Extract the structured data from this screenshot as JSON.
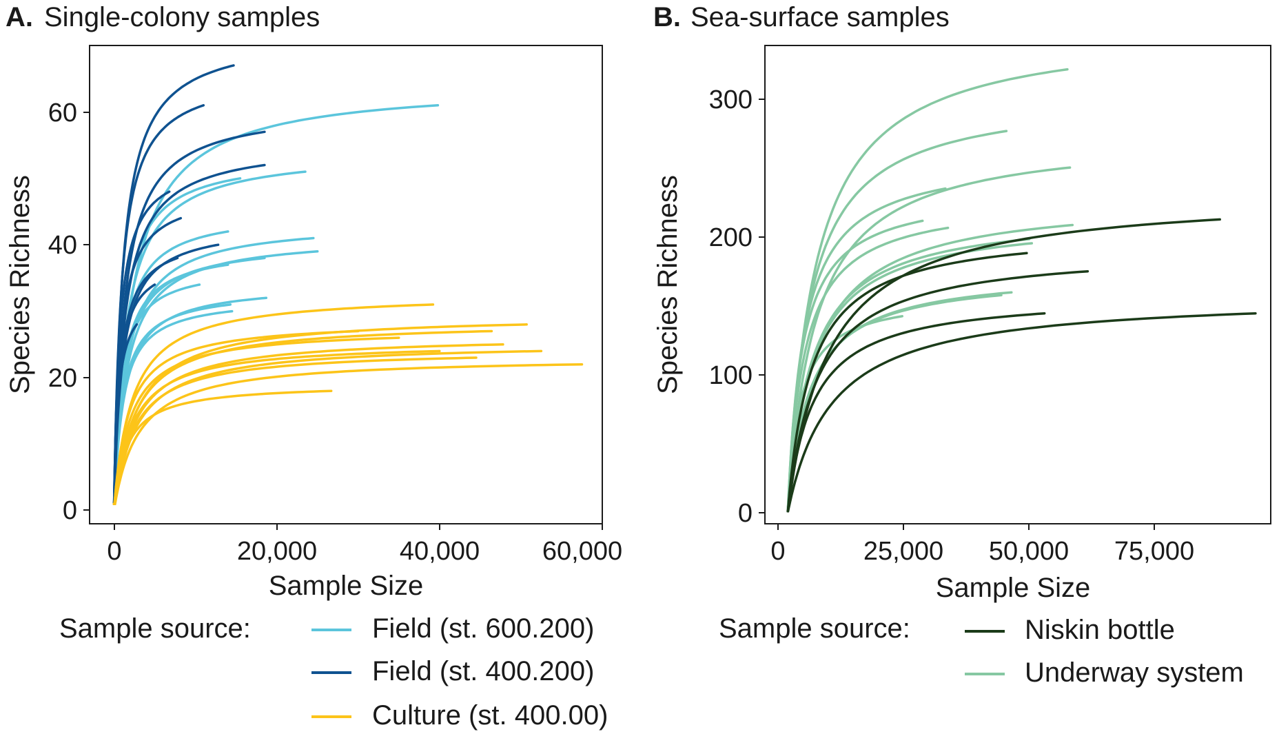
{
  "chart_data": [
    {
      "type": "line",
      "panel_letter": "A.",
      "title": "Single-colony samples",
      "xlabel": "Sample Size",
      "ylabel": "Species Richness",
      "xlim": [
        -3000,
        60000
      ],
      "ylim": [
        -2,
        70
      ],
      "xticks": [
        0,
        20000,
        40000,
        60000
      ],
      "xtick_labels": [
        "0",
        "20,000",
        "40,000",
        "60,000"
      ],
      "yticks": [
        0,
        20,
        40,
        60
      ],
      "ytick_labels": [
        "0",
        "20",
        "40",
        "60"
      ],
      "grid": false,
      "legend": {
        "position": "bottom",
        "title": "Sample source:",
        "entries": [
          {
            "label": "Field (st. 600.200)",
            "color": "#5bc5dc"
          },
          {
            "label": "Field (st. 400.200)",
            "color": "#0f5290"
          },
          {
            "label": "Culture (st. 400.00)",
            "color": "#fcc419"
          }
        ]
      },
      "series_groups": [
        {
          "name": "Field (st. 600.200)",
          "color": "#5bc5dc",
          "curves": [
            {
              "max_x": 39800,
              "max_y": 61
            },
            {
              "max_x": 23500,
              "max_y": 51
            },
            {
              "max_x": 15500,
              "max_y": 50
            },
            {
              "max_x": 24500,
              "max_y": 41
            },
            {
              "max_x": 25000,
              "max_y": 39
            },
            {
              "max_x": 14000,
              "max_y": 42
            },
            {
              "max_x": 18500,
              "max_y": 38
            },
            {
              "max_x": 14000,
              "max_y": 37
            },
            {
              "max_x": 10500,
              "max_y": 34
            },
            {
              "max_x": 18700,
              "max_y": 32
            },
            {
              "max_x": 14300,
              "max_y": 31
            },
            {
              "max_x": 14500,
              "max_y": 30
            }
          ]
        },
        {
          "name": "Field (st. 400.200)",
          "color": "#0f5290",
          "curves": [
            {
              "max_x": 14700,
              "max_y": 67
            },
            {
              "max_x": 11000,
              "max_y": 61
            },
            {
              "max_x": 18500,
              "max_y": 57
            },
            {
              "max_x": 18500,
              "max_y": 52
            },
            {
              "max_x": 6800,
              "max_y": 48
            },
            {
              "max_x": 8200,
              "max_y": 44
            },
            {
              "max_x": 12800,
              "max_y": 40
            },
            {
              "max_x": 7800,
              "max_y": 38
            },
            {
              "max_x": 5000,
              "max_y": 34
            },
            {
              "max_x": 2800,
              "max_y": 28
            }
          ]
        },
        {
          "name": "Culture (st. 400.00)",
          "color": "#fcc419",
          "curves": [
            {
              "max_x": 39200,
              "max_y": 31
            },
            {
              "max_x": 50700,
              "max_y": 28
            },
            {
              "max_x": 46400,
              "max_y": 27
            },
            {
              "max_x": 30000,
              "max_y": 27
            },
            {
              "max_x": 47800,
              "max_y": 25
            },
            {
              "max_x": 52500,
              "max_y": 24
            },
            {
              "max_x": 44500,
              "max_y": 23
            },
            {
              "max_x": 57500,
              "max_y": 22
            },
            {
              "max_x": 40000,
              "max_y": 24
            },
            {
              "max_x": 35000,
              "max_y": 26
            },
            {
              "max_x": 26700,
              "max_y": 18
            }
          ]
        }
      ]
    },
    {
      "type": "line",
      "panel_letter": "B.",
      "title": "Sea-surface samples",
      "xlabel": "Sample Size",
      "ylabel": "Species Richness",
      "xlim": [
        -4500,
        95000
      ],
      "ylim": [
        -8,
        333
      ],
      "xticks": [
        0,
        25000,
        50000,
        75000
      ],
      "xtick_labels": [
        "0",
        "25,000",
        "50,000",
        "75,000"
      ],
      "yticks": [
        0,
        100,
        200,
        300
      ],
      "ytick_labels": [
        "0",
        "100",
        "200",
        "300"
      ],
      "grid": false,
      "legend": {
        "position": "bottom",
        "title": "Sample source:",
        "entries": [
          {
            "label": "Niskin bottle",
            "color": "#1b3b19"
          },
          {
            "label": "Underway system",
            "color": "#86c8a2"
          }
        ]
      },
      "series_groups": [
        {
          "name": "Underway system",
          "color": "#86c8a2",
          "curves": [
            {
              "max_x": 55000,
              "max_y": 316
            },
            {
              "max_x": 43000,
              "max_y": 272
            },
            {
              "max_x": 55500,
              "max_y": 246
            },
            {
              "max_x": 31000,
              "max_y": 231
            },
            {
              "max_x": 26500,
              "max_y": 208
            },
            {
              "max_x": 31500,
              "max_y": 203
            },
            {
              "max_x": 56000,
              "max_y": 205
            },
            {
              "max_x": 47500,
              "max_y": 195
            },
            {
              "max_x": 48000,
              "max_y": 192
            },
            {
              "max_x": 44000,
              "max_y": 157
            },
            {
              "max_x": 42000,
              "max_y": 155
            },
            {
              "max_x": 22500,
              "max_y": 140
            }
          ]
        },
        {
          "name": "Niskin bottle",
          "color": "#1b3b19",
          "curves": [
            {
              "max_x": 85000,
              "max_y": 209
            },
            {
              "max_x": 47000,
              "max_y": 185
            },
            {
              "max_x": 59000,
              "max_y": 172
            },
            {
              "max_x": 50500,
              "max_y": 142
            },
            {
              "max_x": 92000,
              "max_y": 142
            }
          ]
        }
      ]
    }
  ]
}
